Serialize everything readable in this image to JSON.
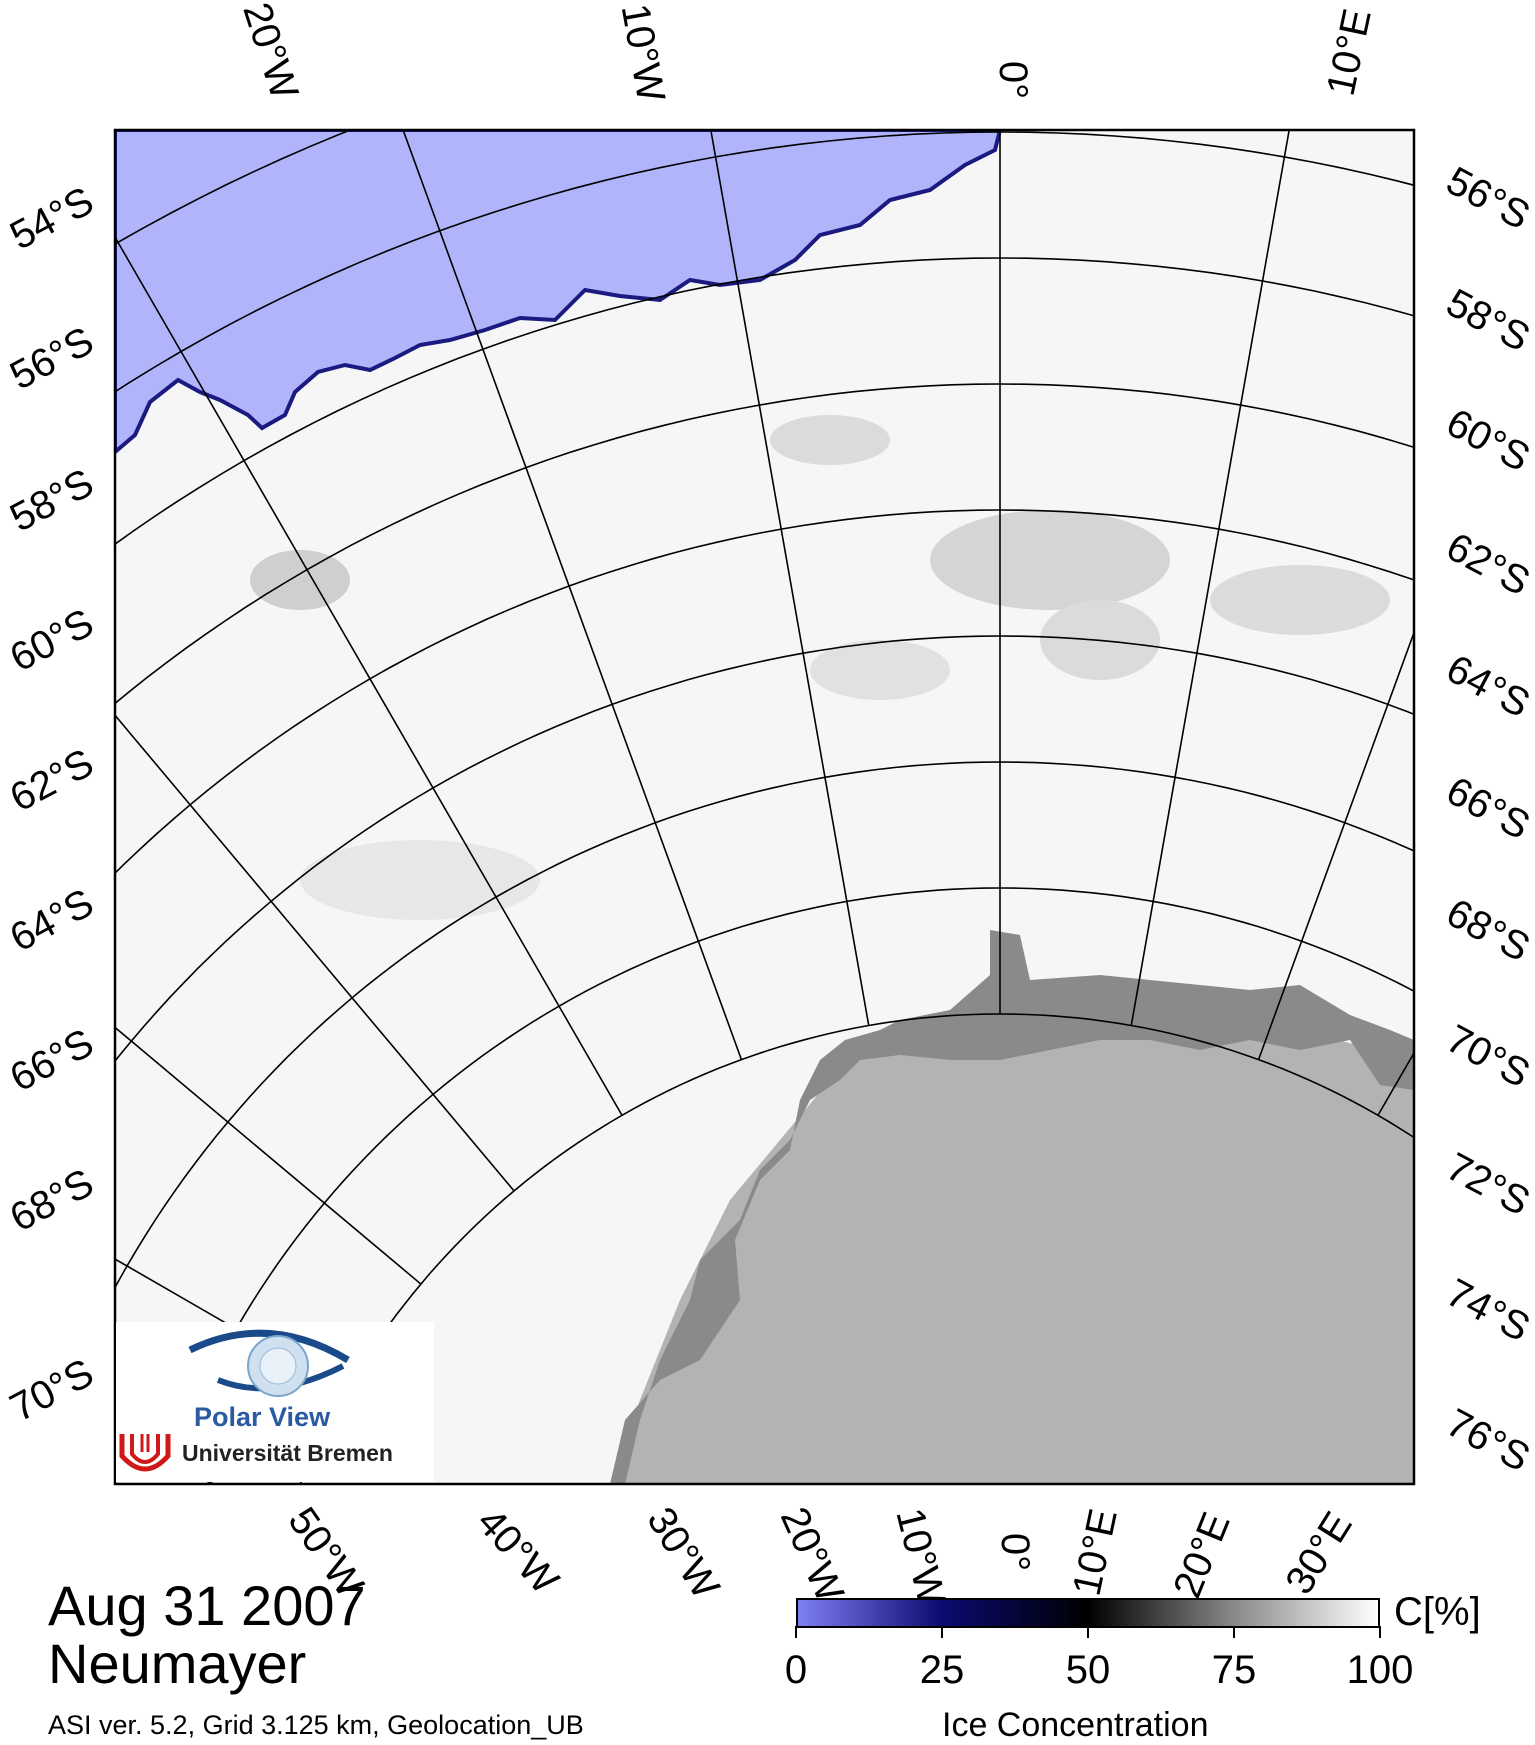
{
  "map": {
    "lon_labels_top": [
      "20°W",
      "10°W",
      "0°",
      "10°E"
    ],
    "lon_labels_bottom": [
      "50°W",
      "40°W",
      "30°W",
      "20°W",
      "10°W",
      "0°",
      "10°E",
      "20°E",
      "30°E"
    ],
    "lat_labels_left": [
      "54°S",
      "56°S",
      "58°S",
      "60°S",
      "62°S",
      "64°S",
      "66°S",
      "68°S",
      "70°S"
    ],
    "lat_labels_right": [
      "56°S",
      "58°S",
      "60°S",
      "62°S",
      "64°S",
      "66°S",
      "68°S",
      "70°S",
      "72°S",
      "74°S",
      "76°S"
    ],
    "colors": {
      "open_water": "#b0b4fb",
      "sea_ice": "#f6f6f6",
      "ice_shelf": "#8a8a8a",
      "land": "#b3b3b3"
    }
  },
  "logo": {
    "name": "Polar View",
    "institution": "Universität Bremen",
    "icon": "eye-globe-icon"
  },
  "caption": {
    "date": "Aug 31 2007",
    "station": "Neumayer",
    "note": "ASI ver. 5.2,  Grid 3.125 km, Geolocation_UB"
  },
  "colorbar": {
    "title": "Ice Concentration",
    "unit": "C[%]",
    "ticks": [
      "0",
      "25",
      "50",
      "75",
      "100"
    ],
    "range": [
      0,
      100
    ],
    "stops": [
      "#7f7ff5",
      "#0a0a70",
      "#000000",
      "#888888",
      "#ffffff"
    ]
  }
}
